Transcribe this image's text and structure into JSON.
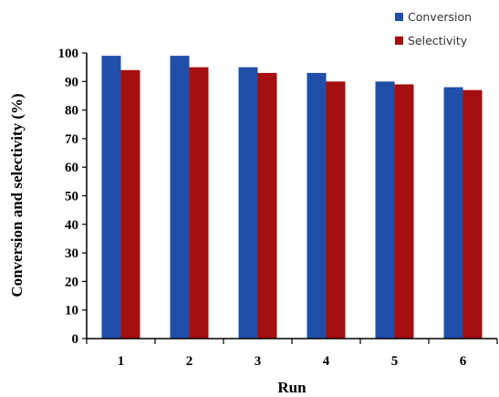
{
  "chart_data": {
    "type": "bar",
    "categories": [
      "1",
      "2",
      "3",
      "4",
      "5",
      "6"
    ],
    "series": [
      {
        "name": "Conversion",
        "color": "#1f4fa8",
        "values": [
          99,
          99,
          95,
          93,
          90,
          88
        ]
      },
      {
        "name": "Selectivity",
        "color": "#a50f0f",
        "values": [
          94,
          95,
          93,
          90,
          89,
          87
        ]
      }
    ],
    "title": "",
    "xlabel": "Run",
    "ylabel": "Conversion and selectivity (%)",
    "ylim": [
      0,
      100
    ],
    "yticks": [
      "0",
      "10",
      "20",
      "30",
      "40",
      "50",
      "60",
      "70",
      "80",
      "90",
      "100"
    ],
    "grid": false,
    "legend_position": "top-right"
  }
}
